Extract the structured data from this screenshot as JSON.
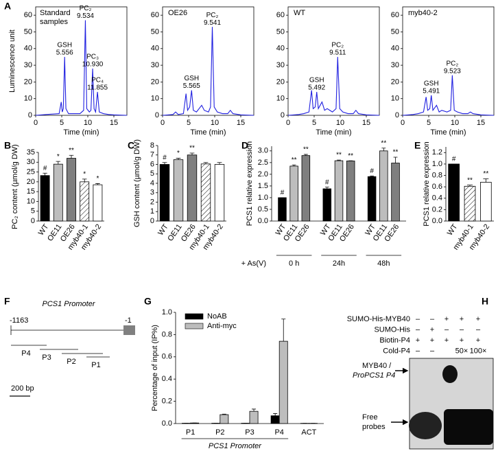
{
  "panel_labels": [
    "A",
    "B",
    "C",
    "D",
    "E",
    "F",
    "G",
    "H"
  ],
  "chart_data": [
    {
      "type": "line",
      "subtitle": [
        "Standard",
        "samples"
      ],
      "ylabel": "Luminescence unit",
      "xlabel": "Time (min)",
      "x": [
        0,
        2,
        4.5,
        4.9,
        5.1,
        5.3,
        5.556,
        5.8,
        6.3,
        7,
        8.5,
        9.2,
        9.534,
        9.8,
        10.3,
        10.6,
        10.93,
        11.2,
        11.5,
        11.855,
        12.2,
        13,
        14,
        15,
        17.5
      ],
      "series": [
        {
          "color": "#1f1fe0",
          "values": [
            0,
            0.5,
            1,
            8,
            2,
            4,
            35,
            4,
            1,
            1,
            1,
            3,
            57,
            4,
            2,
            3,
            28,
            4,
            2,
            14,
            2,
            1,
            0.5,
            0.3,
            0
          ]
        }
      ],
      "peaks": [
        {
          "name": "GSH",
          "time": 5.556
        },
        {
          "name": "PC₂",
          "time": 9.534
        },
        {
          "name": "PC₃",
          "time": {
            "value": 10.93,
            "label": "10.930"
          }
        },
        {
          "name": "PC₄",
          "time": 11.855
        }
      ],
      "xlim": [
        0,
        17.5
      ],
      "ylim": [
        0,
        65
      ],
      "xticks": [
        0,
        5,
        10,
        15
      ],
      "yticks": [
        0,
        10,
        20,
        30,
        40,
        50,
        60
      ]
    },
    {
      "type": "line",
      "subtitle": "OE26",
      "xlabel": "Time (min)",
      "x": [
        0,
        2,
        2.5,
        3,
        4,
        4.5,
        4.8,
        5.2,
        5.565,
        5.9,
        6.5,
        7,
        7.5,
        8,
        8.8,
        9.2,
        9.541,
        9.9,
        10.5,
        11.5,
        12.5,
        13,
        13.5,
        15,
        17.5
      ],
      "series": [
        {
          "color": "#1f1fe0",
          "values": [
            0,
            0.5,
            2,
            0.5,
            1,
            13,
            3,
            5,
            15,
            3,
            2,
            4,
            6,
            3,
            2,
            5,
            53,
            5,
            2,
            1,
            1,
            3,
            1,
            0.3,
            0
          ]
        }
      ],
      "peaks": [
        {
          "name": "GSH",
          "time": 5.565
        },
        {
          "name": "PC₂",
          "time": 9.541
        }
      ],
      "xlim": [
        0,
        17.5
      ],
      "ylim": [
        0,
        65
      ],
      "xticks": [
        0,
        5,
        10,
        15
      ],
      "yticks": [
        0,
        10,
        20,
        30,
        40,
        50,
        60
      ]
    },
    {
      "type": "line",
      "subtitle": "WT",
      "xlabel": "Time (min)",
      "x": [
        0,
        2,
        3,
        4,
        4.5,
        4.8,
        5.2,
        5.492,
        5.8,
        6.5,
        7,
        7.5,
        8.5,
        9.2,
        9.511,
        9.9,
        10.5,
        11.5,
        12.5,
        13,
        13.5,
        15,
        17.5
      ],
      "series": [
        {
          "color": "#1f1fe0",
          "values": [
            0,
            0.5,
            1,
            2,
            15,
            4,
            5,
            14,
            4,
            8,
            3,
            4,
            2,
            4,
            35,
            4,
            2,
            1,
            1,
            3,
            1,
            0.3,
            0
          ]
        }
      ],
      "peaks": [
        {
          "name": "GSH",
          "time": 5.492
        },
        {
          "name": "PC₂",
          "time": 9.511
        }
      ],
      "xlim": [
        0,
        17.5
      ],
      "ylim": [
        0,
        65
      ],
      "xticks": [
        0,
        5,
        10,
        15
      ],
      "yticks": [
        0,
        10,
        20,
        30,
        40,
        50,
        60
      ]
    },
    {
      "type": "line",
      "subtitle": "myb40-2",
      "xlabel": "Time (min)",
      "x": [
        0,
        2,
        3,
        4,
        4.5,
        4.8,
        5.2,
        5.491,
        5.8,
        6.5,
        7,
        7.5,
        8.5,
        9.2,
        9.523,
        9.9,
        10.5,
        11.5,
        12.5,
        13,
        13.5,
        15,
        17.5
      ],
      "series": [
        {
          "color": "#1f1fe0",
          "values": [
            0,
            0.5,
            1,
            2,
            11,
            3,
            4,
            12,
            3,
            6,
            2,
            3,
            2,
            3,
            24,
            3,
            2,
            1,
            1,
            2,
            1,
            0.3,
            0
          ]
        }
      ],
      "peaks": [
        {
          "name": "GSH",
          "time": 5.491
        },
        {
          "name": "PC₂",
          "time": 9.523
        }
      ],
      "xlim": [
        0,
        17.5
      ],
      "ylim": [
        0,
        65
      ],
      "xticks": [
        0,
        5,
        10,
        15
      ],
      "yticks": [
        0,
        10,
        20,
        30,
        40,
        50,
        60
      ]
    },
    {
      "type": "bar",
      "ylabel": "PC₂ content (µmol/g DW)",
      "categories": [
        "WT",
        "OE11",
        "OE26",
        "myb40-1",
        "myb40-2"
      ],
      "values": [
        23.2,
        29,
        32,
        20,
        18.5
      ],
      "errors": [
        1.2,
        1.4,
        1.5,
        1.4,
        0.6
      ],
      "annotations": [
        "#",
        "*",
        "**",
        "*",
        "*"
      ],
      "colors": [
        "#000000",
        "#bdbdbd",
        "#7f7f7f",
        "#ffffff",
        "#ffffff"
      ],
      "hatched": [
        false,
        false,
        false,
        true,
        false
      ],
      "ylim": [
        0,
        35
      ],
      "yticks": [
        0,
        5,
        10,
        15,
        20,
        25,
        30,
        35
      ]
    },
    {
      "type": "bar",
      "ylabel": "GSH content (µmol/g DW)",
      "categories": [
        "WT",
        "OE11",
        "OE26",
        "myb40-1",
        "myb40-2"
      ],
      "values": [
        6.0,
        6.5,
        7.0,
        6.05,
        6.0
      ],
      "errors": [
        0.2,
        0.15,
        0.2,
        0.15,
        0.2
      ],
      "annotations": [
        "#",
        "*",
        "**",
        null,
        null
      ],
      "colors": [
        "#000000",
        "#bdbdbd",
        "#7f7f7f",
        "#ffffff",
        "#ffffff"
      ],
      "hatched": [
        false,
        false,
        false,
        true,
        false
      ],
      "ylim": [
        0,
        8
      ],
      "yticks": [
        0,
        1,
        2,
        3,
        4,
        5,
        6,
        7,
        8
      ]
    },
    {
      "type": "grouped_bar",
      "ylabel": "PCS1 relative expression",
      "group_label": "+ As(V)",
      "groups": [
        "0 h",
        "24h",
        "48h"
      ],
      "series": [
        {
          "name": "WT",
          "color": "#000000",
          "values": [
            1.0,
            1.38,
            1.9
          ],
          "errors": [
            0,
            0.07,
            0.03
          ],
          "annotations": [
            "#",
            "#",
            "#"
          ]
        },
        {
          "name": "OE11",
          "color": "#bdbdbd",
          "values": [
            2.35,
            2.58,
            3.0
          ],
          "errors": [
            0.05,
            0.03,
            0.12
          ],
          "annotations": [
            "**",
            "**",
            "**"
          ]
        },
        {
          "name": "OE26",
          "color": "#7f7f7f",
          "values": [
            2.8,
            2.57,
            2.48
          ],
          "errors": [
            0.05,
            0.01,
            0.25
          ],
          "annotations": [
            "**",
            "**",
            "**"
          ]
        }
      ],
      "ylim": [
        0,
        3.2
      ],
      "yticks": [
        {
          "value": 0,
          "label": "0.0"
        },
        0.5,
        {
          "value": 1,
          "label": "1.0"
        },
        1.5,
        {
          "value": 2,
          "label": "2.0"
        },
        2.5,
        {
          "value": 3,
          "label": "3.0"
        }
      ]
    },
    {
      "type": "bar",
      "ylabel": "PCS1 relative expression",
      "categories": [
        "WT",
        "myb40-1",
        "myb40-2"
      ],
      "values": [
        1.0,
        0.61,
        0.68
      ],
      "errors": [
        0,
        0.02,
        0.06
      ],
      "annotations": [
        "#",
        "**",
        "**"
      ],
      "colors": [
        "#000000",
        "#ffffff",
        "#ffffff"
      ],
      "hatched": [
        false,
        true,
        false
      ],
      "ylim": [
        0,
        1.3
      ],
      "yticks": [
        {
          "value": 0,
          "label": "0.0"
        },
        0.2,
        0.4,
        0.6,
        0.8,
        {
          "value": 1,
          "label": "1.0"
        },
        1.2
      ]
    },
    {
      "type": "grouped_bar",
      "ylabel": "Percentage of input (IP%)",
      "xlabel": "PCS1 Promoter",
      "categories": [
        "P1",
        "P2",
        "P3",
        "P4",
        "ACT"
      ],
      "series": [
        {
          "name": "NoAB",
          "color": "#000000",
          "values": [
            0.003,
            0.003,
            0.003,
            0.07,
            0.002
          ],
          "errors": [
            0,
            0,
            0,
            0.02,
            0
          ]
        },
        {
          "name": "Anti-myc",
          "color": "#bdbdbd",
          "values": [
            0.005,
            0.08,
            0.11,
            0.74,
            0.002
          ],
          "errors": [
            0,
            0.005,
            0.02,
            0.2,
            0
          ]
        }
      ],
      "legend": "top-left",
      "ylim": [
        0,
        1.0
      ],
      "yticks": [
        {
          "value": 0,
          "label": "0.0"
        },
        0.2,
        0.4,
        0.6,
        0.8,
        {
          "value": 1,
          "label": "1.0"
        }
      ]
    }
  ],
  "promoter_diagram": {
    "title": "PCS1 Promoter",
    "start": -1163,
    "end": -1,
    "probes": [
      "P4",
      "P3",
      "P2",
      "P1"
    ],
    "scale": "200 bp"
  },
  "emsa": {
    "rows": [
      {
        "label": "SUMO-His-MYB40",
        "lanes": [
          "–",
          "–",
          "+",
          "+",
          "+"
        ]
      },
      {
        "label": "SUMO-His",
        "lanes": [
          "–",
          "+",
          "–",
          "–",
          "–"
        ]
      },
      {
        "label": "Biotin-P4",
        "lanes": [
          "+",
          "+",
          "+",
          "+",
          "+"
        ]
      },
      {
        "label": "Cold-P4",
        "lanes": [
          "–",
          "–",
          null,
          "50×",
          "100×"
        ]
      }
    ],
    "complex_label": [
      "MYB40 /",
      "ProPCS1 P4"
    ],
    "free_label": [
      "Free",
      "probes"
    ]
  }
}
